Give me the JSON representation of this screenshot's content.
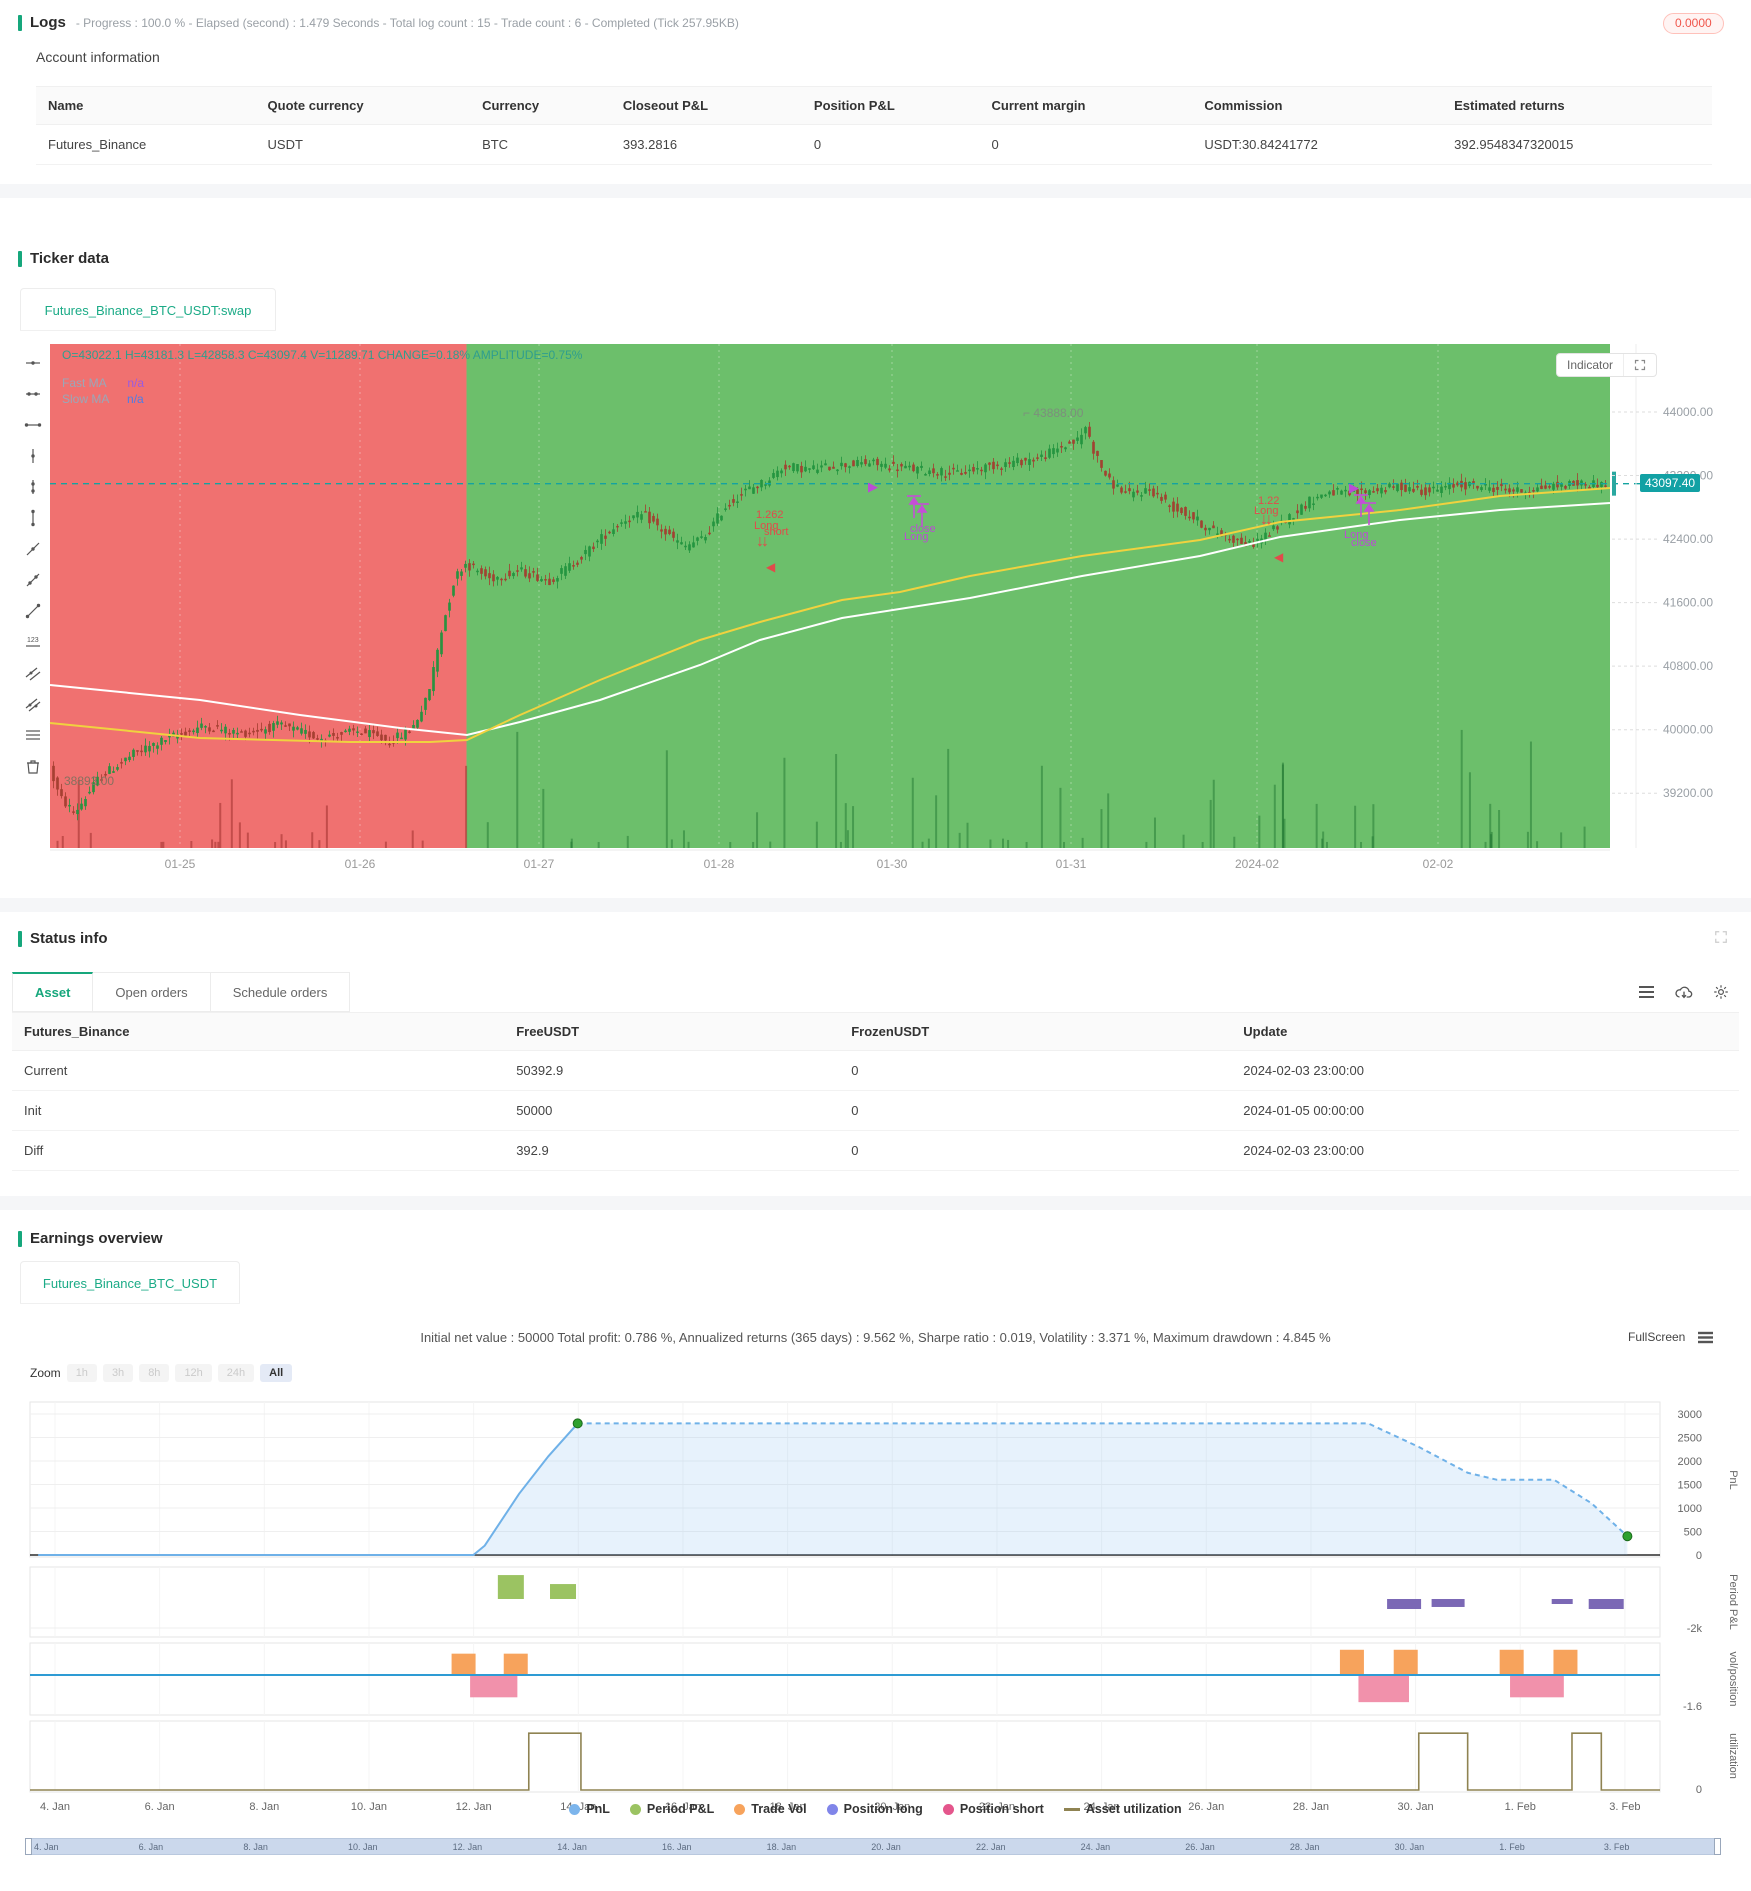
{
  "colors": {
    "accent": "#16a77c",
    "tab_green": "#1cab87",
    "alert_red": "#f0564c",
    "link_blue": "#4a8fe2",
    "price_tag": "#12a1a4",
    "chart_red_bg": "#f07170",
    "chart_green_bg": "#6cbf6b",
    "candle_up": "rgba(34,148,62,0.8)",
    "candle_down": "rgba(163,62,48,0.8)",
    "ma_fast": "#f0d23f",
    "ma_slow": "#ffffff",
    "marker_red": "#e14b4b",
    "marker_purple": "#bb4cd4"
  },
  "logs": {
    "title": "Logs",
    "meta": "- Progress : 100.0 % - Elapsed (second) : 1.479  Seconds - Total log count : 15 - Trade count : 6 - Completed (Tick 257.95KB)",
    "badge": "0.0000"
  },
  "account": {
    "heading": "Account information",
    "columns": [
      "Name",
      "Quote currency",
      "Currency",
      "Closeout P&L",
      "Position P&L",
      "Current margin",
      "Commission",
      "Estimated returns"
    ],
    "row": [
      "Futures_Binance",
      "USDT",
      "BTC",
      "393.2816",
      "0",
      "0",
      "USDT:30.84241772",
      "392.9548347320015"
    ]
  },
  "ticker": {
    "heading": "Ticker data",
    "tab": "Futures_Binance_BTC_USDT:swap",
    "ohlc": "O=43022.1 H=43181.3 L=42858.3 C=43097.4 V=11289.71 CHANGE=0.18% AMPLITUDE=0.75%",
    "fast_ma_label": "Fast MA",
    "fast_ma_value": "n/a",
    "slow_ma_label": "Slow MA",
    "slow_ma_value": "n/a",
    "indicator": "Indicator",
    "price_tag": "43097.40",
    "high_label": "43888.00",
    "low_label": "38893.00",
    "markers": {
      "m1": {
        "qty": "1.262",
        "l1": "Long",
        "l2": "short"
      },
      "m2": {
        "l1": "close",
        "l2": "Long"
      },
      "m3": {
        "qty": "1.22",
        "l1": "Long"
      },
      "m4": {
        "l1": "Long",
        "l2": "close"
      }
    }
  },
  "status": {
    "heading": "Status info",
    "tabs": [
      "Asset",
      "Open orders",
      "Schedule orders"
    ],
    "columns": [
      "Futures_Binance",
      "FreeUSDT",
      "FrozenUSDT",
      "Update"
    ],
    "rows": [
      [
        "Current",
        "50392.9",
        "0",
        "2024-02-03 23:00:00"
      ],
      [
        "Init",
        "50000",
        "0",
        "2024-01-05 00:00:00"
      ],
      [
        "Diff",
        "392.9",
        "0",
        "2024-02-03 23:00:00"
      ]
    ]
  },
  "earnings": {
    "heading": "Earnings overview",
    "tab": "Futures_Binance_BTC_USDT",
    "stats": "Initial net value : 50000 Total profit: 0.786 %, Annualized returns (365 days) : 9.562 %, Sharpe ratio : 0.019, Volatility : 3.371 %, Maximum drawdown : 4.845 %",
    "fullscreen": "FullScreen",
    "zoom_label": "Zoom",
    "zoom_options": [
      "1h",
      "3h",
      "8h",
      "12h",
      "24h",
      "All"
    ],
    "zoom_selected": "All"
  },
  "chart_data": [
    {
      "id": "ticker",
      "type": "candlestick",
      "title": "Futures_Binance_BTC_USDT:swap",
      "current_price": 43097.4,
      "high": 43888,
      "low": 38893,
      "split_frac": 0.267,
      "y_ticks": [
        "44000.00",
        "43200.00",
        "42400.00",
        "41600.00",
        "40800.00",
        "40000.00",
        "39200.00"
      ],
      "x_ticks": [
        "01-25",
        "01-26",
        "01-27",
        "01-28",
        "01-30",
        "01-31",
        "2024-02",
        "02-02"
      ],
      "baseline": [
        [
          8,
          39600
        ],
        [
          20,
          39150
        ],
        [
          35,
          38950
        ],
        [
          60,
          39400
        ],
        [
          95,
          39700
        ],
        [
          130,
          39900
        ],
        [
          165,
          40050
        ],
        [
          200,
          39950
        ],
        [
          240,
          40050
        ],
        [
          280,
          39900
        ],
        [
          320,
          39980
        ],
        [
          350,
          39850
        ],
        [
          372,
          40000
        ],
        [
          388,
          40400
        ],
        [
          402,
          41250
        ],
        [
          415,
          41900
        ],
        [
          425,
          42100
        ],
        [
          450,
          41900
        ],
        [
          480,
          42000
        ],
        [
          510,
          41880
        ],
        [
          540,
          42150
        ],
        [
          565,
          42450
        ],
        [
          585,
          42650
        ],
        [
          605,
          42700
        ],
        [
          625,
          42480
        ],
        [
          645,
          42300
        ],
        [
          665,
          42420
        ],
        [
          685,
          42800
        ],
        [
          705,
          43000
        ],
        [
          725,
          43120
        ],
        [
          745,
          43320
        ],
        [
          770,
          43280
        ],
        [
          800,
          43330
        ],
        [
          830,
          43360
        ],
        [
          860,
          43300
        ],
        [
          890,
          43260
        ],
        [
          920,
          43230
        ],
        [
          950,
          43320
        ],
        [
          980,
          43380
        ],
        [
          1000,
          43420
        ],
        [
          1020,
          43550
        ],
        [
          1040,
          43650
        ],
        [
          1046,
          43820
        ],
        [
          1056,
          43450
        ],
        [
          1070,
          43120
        ],
        [
          1090,
          42950
        ],
        [
          1110,
          43030
        ],
        [
          1130,
          42820
        ],
        [
          1150,
          42700
        ],
        [
          1170,
          42520
        ],
        [
          1190,
          42420
        ],
        [
          1210,
          42320
        ],
        [
          1230,
          42480
        ],
        [
          1250,
          42680
        ],
        [
          1270,
          42880
        ],
        [
          1290,
          43000
        ],
        [
          1310,
          42960
        ],
        [
          1330,
          43010
        ],
        [
          1360,
          43060
        ],
        [
          1390,
          43000
        ],
        [
          1420,
          43090
        ],
        [
          1450,
          43050
        ],
        [
          1480,
          43000
        ],
        [
          1510,
          43060
        ],
        [
          1540,
          43100
        ],
        [
          1568,
          43097
        ]
      ],
      "ma_fast": [
        [
          8,
          383
        ],
        [
          158,
          398
        ],
        [
          308,
          402
        ],
        [
          388,
          402
        ],
        [
          425,
          400
        ],
        [
          478,
          375
        ],
        [
          558,
          340
        ],
        [
          658,
          300
        ],
        [
          718,
          282
        ],
        [
          800,
          260
        ],
        [
          858,
          252
        ],
        [
          928,
          236
        ],
        [
          1040,
          216
        ],
        [
          1158,
          200
        ],
        [
          1238,
          182
        ],
        [
          1358,
          170
        ],
        [
          1458,
          156
        ],
        [
          1568,
          148
        ]
      ],
      "ma_slow": [
        [
          8,
          345
        ],
        [
          158,
          360
        ],
        [
          258,
          375
        ],
        [
          358,
          388
        ],
        [
          425,
          395
        ],
        [
          478,
          382
        ],
        [
          558,
          360
        ],
        [
          658,
          325
        ],
        [
          718,
          300
        ],
        [
          800,
          278
        ],
        [
          928,
          258
        ],
        [
          1040,
          236
        ],
        [
          1158,
          216
        ],
        [
          1238,
          197
        ],
        [
          1358,
          180
        ],
        [
          1458,
          170
        ],
        [
          1568,
          163
        ]
      ]
    },
    {
      "id": "earnings",
      "type": "multi-panel-line",
      "pnl": {
        "title": "PnL",
        "ylim": [
          0,
          3000
        ],
        "yticks": [
          "3000",
          "2500",
          "2000",
          "1500",
          "1000",
          "500",
          "0"
        ],
        "solid": [
          [
            0.005,
            0
          ],
          [
            0.272,
            0
          ],
          [
            0.279,
            200
          ],
          [
            0.3,
            1300
          ],
          [
            0.318,
            2100
          ],
          [
            0.336,
            2800
          ]
        ],
        "dashed": [
          [
            0.336,
            2800
          ],
          [
            0.821,
            2800
          ],
          [
            0.852,
            2300
          ],
          [
            0.882,
            1750
          ],
          [
            0.9,
            1600
          ],
          [
            0.935,
            1600
          ],
          [
            0.958,
            1100
          ],
          [
            0.98,
            400
          ]
        ],
        "dots": [
          [
            0.336,
            2800
          ],
          [
            0.98,
            400
          ]
        ]
      },
      "period": {
        "title": "Period P&L",
        "neg_label": "-2k",
        "ylim": [
          -2000,
          1650
        ],
        "bars": [
          [
            0.295,
            1650,
            26
          ],
          [
            0.327,
            1030,
            26
          ],
          [
            0.843,
            -690,
            34
          ],
          [
            0.87,
            -550,
            33
          ],
          [
            0.94,
            -345,
            21
          ],
          [
            0.967,
            -690,
            35
          ]
        ]
      },
      "vol": {
        "title": "vol/position",
        "neg_label": "-1.6",
        "orange": [
          [
            0.266,
            1.1
          ],
          [
            0.298,
            1.1
          ],
          [
            0.811,
            1.3
          ],
          [
            0.844,
            1.3
          ],
          [
            0.909,
            1.3
          ],
          [
            0.942,
            1.3
          ]
        ],
        "pink": [
          {
            "x0": 0.27,
            "x1": 0.299,
            "v": -1.15
          },
          {
            "x0": 0.815,
            "x1": 0.846,
            "v": -1.4
          },
          {
            "x0": 0.908,
            "x1": 0.941,
            "v": -1.15
          }
        ]
      },
      "util": {
        "title": "utilization",
        "zero_label": "0",
        "level": 0.8,
        "pulses": [
          [
            0.306,
            0.338
          ],
          [
            0.852,
            0.882
          ],
          [
            0.946,
            0.964
          ]
        ]
      },
      "x_labels": [
        "4. Jan",
        "6. Jan",
        "8. Jan",
        "10. Jan",
        "12. Jan",
        "14. Jan",
        "16. Jan",
        "18. Jan",
        "20. Jan",
        "22. Jan",
        "24. Jan",
        "26. Jan",
        "28. Jan",
        "30. Jan",
        "1. Feb",
        "3. Feb"
      ],
      "legend": [
        {
          "label": "PnL",
          "color": "#7cb5ec",
          "type": "dot"
        },
        {
          "label": "Period P&L",
          "color": "#9bc362",
          "type": "dot"
        },
        {
          "label": "Trade Vol",
          "color": "#f7a35c",
          "type": "dot"
        },
        {
          "label": "Position long",
          "color": "#8085e9",
          "type": "dot"
        },
        {
          "label": "Position short",
          "color": "#e4568c",
          "type": "dot"
        },
        {
          "label": "Asset utilization",
          "color": "#8f8352",
          "type": "line"
        }
      ]
    }
  ]
}
